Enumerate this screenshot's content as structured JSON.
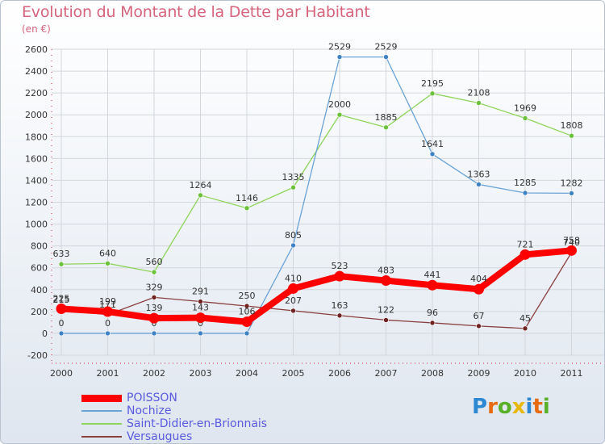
{
  "header": {
    "title": "Evolution du Montant de la Dette par Habitant",
    "subtitle": "(en €)"
  },
  "logo": {
    "letters": [
      "P",
      "r",
      "o",
      "x",
      "i",
      "t",
      "i"
    ],
    "colors": [
      "#2c88d0",
      "#e86a10",
      "#58b027",
      "#e8b810",
      "#2c88d0",
      "#e86a10",
      "#58b027"
    ]
  },
  "chart_data": {
    "type": "line",
    "title": "Evolution du Montant de la Dette par Habitant",
    "subtitle": "(en €)",
    "x": [
      "2000",
      "2001",
      "2002",
      "2003",
      "2004",
      "2005",
      "2006",
      "2007",
      "2008",
      "2009",
      "2010",
      "2011"
    ],
    "ylim": [
      -200,
      2600
    ],
    "yticks": [
      -200,
      0,
      200,
      400,
      600,
      800,
      1000,
      1200,
      1400,
      1600,
      1800,
      2000,
      2200,
      2400,
      2600
    ],
    "grid": true,
    "legend": "bottom-left",
    "series": [
      {
        "name": "Saint-Didier-en-Brionnais",
        "color": "#8fd45a",
        "point": "#6cc13a",
        "width": 1.3,
        "values": [
          633,
          640,
          560,
          1264,
          1146,
          1335,
          2000,
          1885,
          2195,
          2108,
          1969,
          1808
        ],
        "labels": [
          "633",
          "640",
          "560",
          "1264",
          "1146",
          "1335",
          "2000",
          "1885",
          "2195",
          "2108",
          "1969",
          "1808"
        ]
      },
      {
        "name": "Nochize",
        "color": "#6aa3d6",
        "point": "#3f82c4",
        "width": 1.3,
        "values": [
          0,
          0,
          0,
          0,
          0,
          805,
          2529,
          2529,
          1641,
          1363,
          1285,
          1282
        ],
        "labels": [
          "0",
          "0",
          "0",
          "0",
          "",
          "805",
          "2529",
          "2529",
          "1641",
          "1363",
          "1285",
          "1282"
        ]
      },
      {
        "name": "Versaugues",
        "color": "#8a3f3f",
        "point": "#6e2222",
        "width": 1.3,
        "values": [
          215,
          171,
          329,
          291,
          250,
          207,
          163,
          122,
          96,
          67,
          45,
          740
        ],
        "labels": [
          "215",
          "171",
          "329",
          "291",
          "250",
          "207",
          "163",
          "122",
          "96",
          "67",
          "45",
          "740"
        ]
      },
      {
        "name": "POISSON",
        "color": "#ff0000",
        "point": "#ff0000",
        "width": 8,
        "values": [
          225,
          199,
          139,
          143,
          106,
          410,
          523,
          483,
          441,
          404,
          721,
          758
        ],
        "labels": [
          "225",
          "199",
          "139",
          "143",
          "106",
          "410",
          "523",
          "483",
          "441",
          "404",
          "721",
          "758"
        ]
      }
    ],
    "legend_order": [
      "POISSON",
      "Nochize",
      "Saint-Didier-en-Brionnais",
      "Versaugues"
    ]
  }
}
